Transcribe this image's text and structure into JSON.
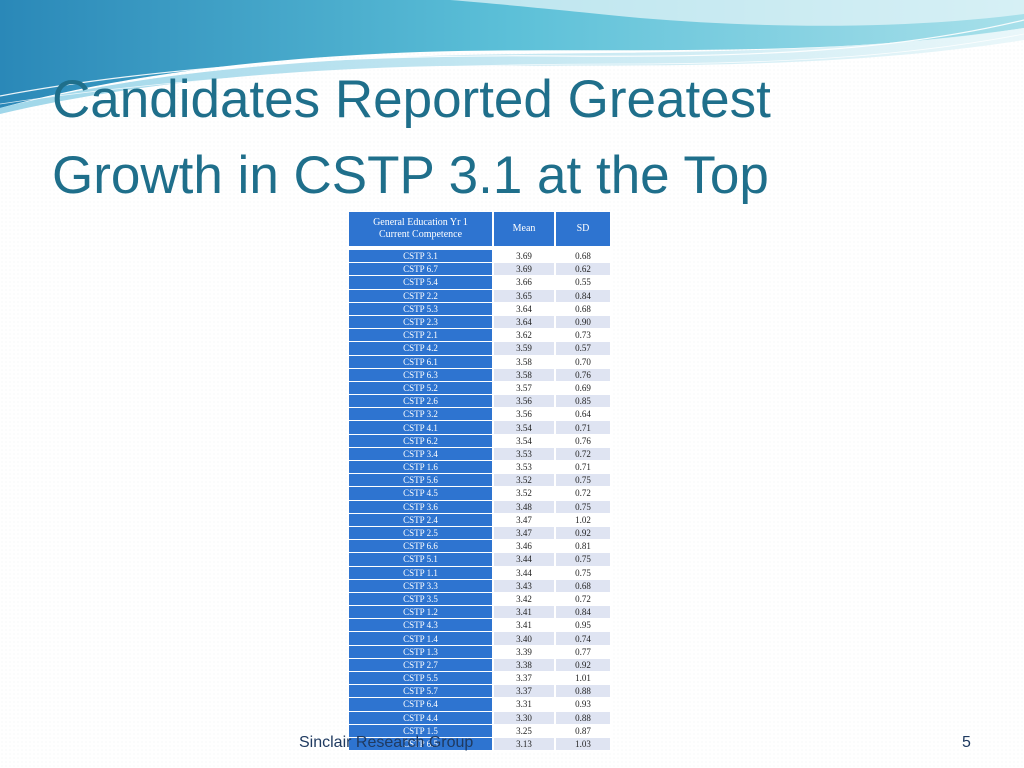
{
  "slide": {
    "title_line1": "Candidates Reported Greatest",
    "title_line2": "Growth in CSTP 3.1 at the Top",
    "footer": "Sinclair Research Group",
    "page_number": "5",
    "accent_color": "#1f6f8b",
    "table_header_color": "#2e74d0"
  },
  "table": {
    "headers": [
      "General Education Yr 1\nCurrent Competence",
      "Mean",
      "SD"
    ],
    "rows": [
      [
        "CSTP 3.1",
        "3.69",
        "0.68"
      ],
      [
        "CSTP 6.7",
        "3.69",
        "0.62"
      ],
      [
        "CSTP 5.4",
        "3.66",
        "0.55"
      ],
      [
        "CSTP 2.2",
        "3.65",
        "0.84"
      ],
      [
        "CSTP 5.3",
        "3.64",
        "0.68"
      ],
      [
        "CSTP 2.3",
        "3.64",
        "0.90"
      ],
      [
        "CSTP 2.1",
        "3.62",
        "0.73"
      ],
      [
        "CSTP 4.2",
        "3.59",
        "0.57"
      ],
      [
        "CSTP 6.1",
        "3.58",
        "0.70"
      ],
      [
        "CSTP 6.3",
        "3.58",
        "0.76"
      ],
      [
        "CSTP 5.2",
        "3.57",
        "0.69"
      ],
      [
        "CSTP 2.6",
        "3.56",
        "0.85"
      ],
      [
        "CSTP 3.2",
        "3.56",
        "0.64"
      ],
      [
        "CSTP 4.1",
        "3.54",
        "0.71"
      ],
      [
        "CSTP 6.2",
        "3.54",
        "0.76"
      ],
      [
        "CSTP 3.4",
        "3.53",
        "0.72"
      ],
      [
        "CSTP 1.6",
        "3.53",
        "0.71"
      ],
      [
        "CSTP 5.6",
        "3.52",
        "0.75"
      ],
      [
        "CSTP 4.5",
        "3.52",
        "0.72"
      ],
      [
        "CSTP 3.6",
        "3.48",
        "0.75"
      ],
      [
        "CSTP 2.4",
        "3.47",
        "1.02"
      ],
      [
        "CSTP 2.5",
        "3.47",
        "0.92"
      ],
      [
        "CSTP 6.6",
        "3.46",
        "0.81"
      ],
      [
        "CSTP 5.1",
        "3.44",
        "0.75"
      ],
      [
        "CSTP 1.1",
        "3.44",
        "0.75"
      ],
      [
        "CSTP 3.3",
        "3.43",
        "0.68"
      ],
      [
        "CSTP 3.5",
        "3.42",
        "0.72"
      ],
      [
        "CSTP 1.2",
        "3.41",
        "0.84"
      ],
      [
        "CSTP 4.3",
        "3.41",
        "0.95"
      ],
      [
        "CSTP 1.4",
        "3.40",
        "0.74"
      ],
      [
        "CSTP 1.3",
        "3.39",
        "0.77"
      ],
      [
        "CSTP 2.7",
        "3.38",
        "0.92"
      ],
      [
        "CSTP 5.5",
        "3.37",
        "1.01"
      ],
      [
        "CSTP 5.7",
        "3.37",
        "0.88"
      ],
      [
        "CSTP 6.4",
        "3.31",
        "0.93"
      ],
      [
        "CSTP 4.4",
        "3.30",
        "0.88"
      ],
      [
        "CSTP 1.5",
        "3.25",
        "0.87"
      ],
      [
        "CSTP 6.5",
        "3.13",
        "1.03"
      ]
    ]
  }
}
